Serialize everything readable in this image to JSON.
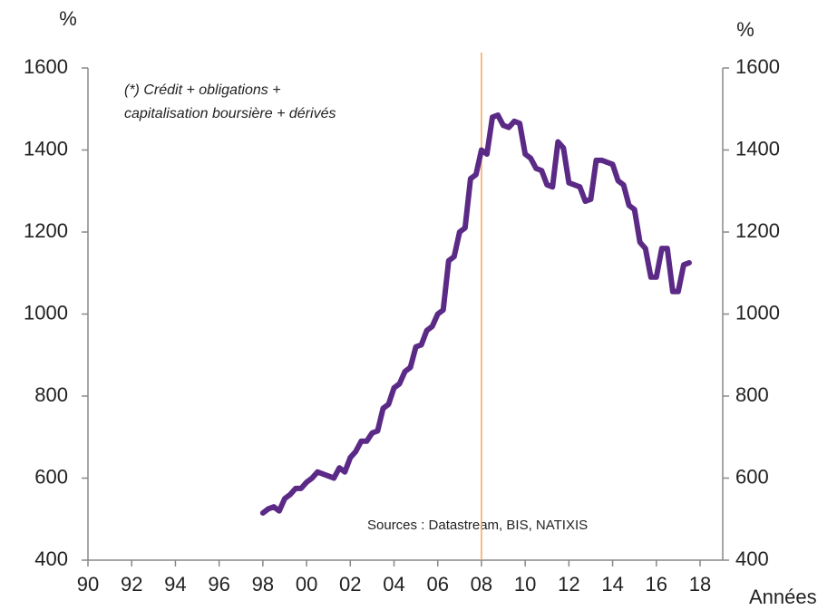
{
  "chart_data": {
    "type": "line",
    "y_unit_left": "%",
    "y_unit_right": "%",
    "x_label": "Années",
    "annotations": [
      "(*)  Crédit + obligations +",
      "capitalisation boursière + dérivés",
      "Sources : Datastream, BIS, NATIXIS"
    ],
    "vline": 2008,
    "vline_color": "#f4a460",
    "x": [
      1998,
      1998.25,
      1998.5,
      1998.75,
      1999,
      1999.25,
      1999.5,
      1999.75,
      2000,
      2000.25,
      2000.5,
      2000.75,
      2001,
      2001.25,
      2001.5,
      2001.75,
      2002,
      2002.25,
      2002.5,
      2002.75,
      2003,
      2003.25,
      2003.5,
      2003.75,
      2004,
      2004.25,
      2004.5,
      2004.75,
      2005,
      2005.25,
      2005.5,
      2005.75,
      2006,
      2006.25,
      2006.5,
      2006.75,
      2007,
      2007.25,
      2007.5,
      2007.75,
      2008,
      2008.25,
      2008.5,
      2008.75,
      2009,
      2009.25,
      2009.5,
      2009.75,
      2010,
      2010.25,
      2010.5,
      2010.75,
      2011,
      2011.25,
      2011.5,
      2011.75,
      2012,
      2012.25,
      2012.5,
      2012.75,
      2013,
      2013.25,
      2013.5,
      2013.75,
      2014,
      2014.25,
      2014.5,
      2014.75,
      2015,
      2015.25,
      2015.5,
      2015.75,
      2016,
      2016.25,
      2016.5,
      2016.75,
      2017,
      2017.25,
      2017.5
    ],
    "series": [
      {
        "color": "#5b2a86",
        "values": [
          515,
          525,
          530,
          520,
          550,
          560,
          575,
          575,
          590,
          600,
          615,
          610,
          605,
          600,
          625,
          615,
          650,
          665,
          690,
          690,
          710,
          715,
          770,
          780,
          820,
          830,
          860,
          870,
          920,
          925,
          960,
          970,
          1000,
          1010,
          1130,
          1140,
          1200,
          1210,
          1330,
          1340,
          1400,
          1390,
          1480,
          1485,
          1460,
          1455,
          1470,
          1465,
          1390,
          1380,
          1355,
          1350,
          1315,
          1310,
          1420,
          1405,
          1320,
          1315,
          1310,
          1275,
          1280,
          1375,
          1375,
          1370,
          1365,
          1325,
          1315,
          1265,
          1255,
          1175,
          1160,
          1090,
          1090,
          1160,
          1160,
          1055,
          1055,
          1120,
          1125
        ]
      }
    ],
    "xlim": [
      1990,
      2018
    ],
    "xticks": [
      {
        "value": 1990,
        "label": "90"
      },
      {
        "value": 1992,
        "label": "92"
      },
      {
        "value": 1994,
        "label": "94"
      },
      {
        "value": 1996,
        "label": "96"
      },
      {
        "value": 1998,
        "label": "98"
      },
      {
        "value": 2000,
        "label": "00"
      },
      {
        "value": 2002,
        "label": "02"
      },
      {
        "value": 2004,
        "label": "04"
      },
      {
        "value": 2006,
        "label": "06"
      },
      {
        "value": 2008,
        "label": "08"
      },
      {
        "value": 2010,
        "label": "10"
      },
      {
        "value": 2012,
        "label": "12"
      },
      {
        "value": 2014,
        "label": "14"
      },
      {
        "value": 2016,
        "label": "16"
      },
      {
        "value": 2018,
        "label": "18"
      }
    ],
    "ylim": [
      400,
      1600
    ],
    "yticks": [
      400,
      600,
      800,
      1000,
      1200,
      1400,
      1600
    ],
    "y2lim": [
      400,
      1600
    ],
    "y2ticks": [
      400,
      600,
      800,
      1000,
      1200,
      1400,
      1600
    ],
    "grid": false
  }
}
